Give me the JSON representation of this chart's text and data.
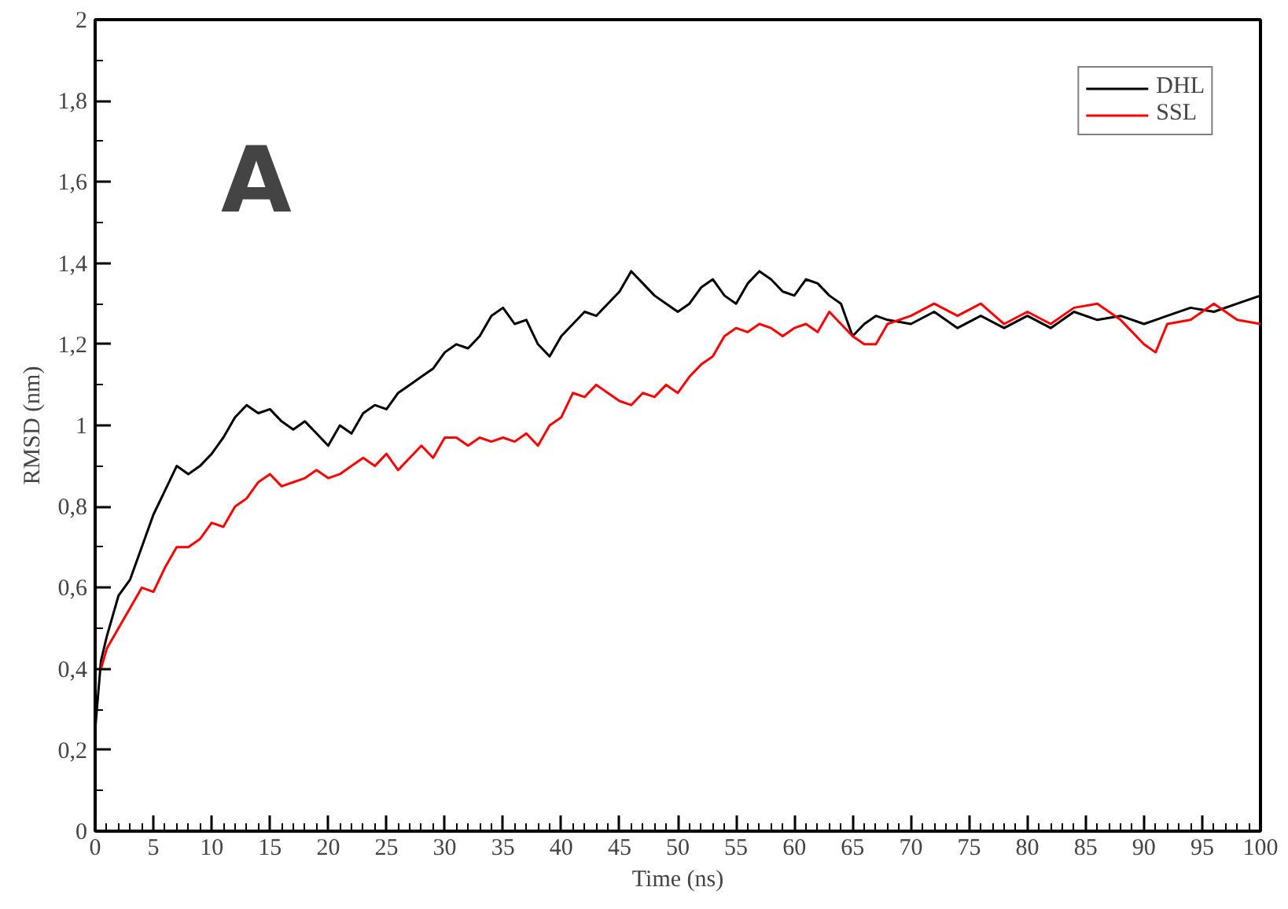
{
  "chart_data": {
    "type": "line",
    "xlabel": "Time (ns)",
    "ylabel": "RMSD (nm)",
    "annotations": [
      "A"
    ],
    "xlim": [
      0,
      100
    ],
    "xticks": [
      0,
      5,
      10,
      15,
      20,
      25,
      30,
      35,
      40,
      45,
      50,
      55,
      60,
      65,
      70,
      75,
      80,
      85,
      90,
      95,
      100
    ],
    "ylim": [
      0,
      2
    ],
    "yticks": [
      0,
      {
        "value": 0.2,
        "label": "0,2"
      },
      {
        "value": 0.4,
        "label": "0,4"
      },
      {
        "value": 0.6,
        "label": "0,6"
      },
      {
        "value": 0.8,
        "label": "0,8"
      },
      1,
      {
        "value": 1.2,
        "label": "1,2"
      },
      {
        "value": 1.4,
        "label": "1,4"
      },
      {
        "value": 1.6,
        "label": "1,6"
      },
      {
        "value": 1.8,
        "label": "1,8"
      },
      2
    ],
    "grid": false,
    "legend": "top right",
    "marker": "none",
    "line_style": "solid",
    "x": [
      0,
      0.5,
      1,
      2,
      3,
      4,
      5,
      6,
      7,
      8,
      9,
      10,
      11,
      12,
      13,
      14,
      15,
      16,
      17,
      18,
      19,
      20,
      21,
      22,
      23,
      24,
      25,
      26,
      27,
      28,
      29,
      30,
      31,
      32,
      33,
      34,
      35,
      36,
      37,
      38,
      39,
      40,
      41,
      42,
      43,
      44,
      45,
      46,
      47,
      48,
      49,
      50,
      51,
      52,
      53,
      54,
      55,
      56,
      57,
      58,
      59,
      60,
      61,
      62,
      63,
      64,
      65,
      66,
      67,
      68,
      70,
      72,
      74,
      76,
      78,
      80,
      82,
      84,
      86,
      88,
      90,
      91,
      92,
      94,
      96,
      98,
      100
    ],
    "series": [
      {
        "name": "DHL",
        "color": "#000000",
        "values": [
          0.25,
          0.42,
          0.48,
          0.58,
          0.62,
          0.7,
          0.78,
          0.84,
          0.9,
          0.88,
          0.9,
          0.93,
          0.97,
          1.02,
          1.05,
          1.03,
          1.04,
          1.01,
          0.99,
          1.01,
          0.98,
          0.95,
          1.0,
          0.98,
          1.03,
          1.05,
          1.04,
          1.08,
          1.1,
          1.12,
          1.14,
          1.18,
          1.2,
          1.19,
          1.22,
          1.27,
          1.29,
          1.25,
          1.26,
          1.2,
          1.17,
          1.22,
          1.25,
          1.28,
          1.27,
          1.3,
          1.33,
          1.38,
          1.35,
          1.32,
          1.3,
          1.28,
          1.3,
          1.34,
          1.36,
          1.32,
          1.3,
          1.35,
          1.38,
          1.36,
          1.33,
          1.32,
          1.36,
          1.35,
          1.32,
          1.3,
          1.22,
          1.25,
          1.27,
          1.26,
          1.25,
          1.28,
          1.24,
          1.27,
          1.24,
          1.27,
          1.24,
          1.28,
          1.26,
          1.27,
          1.25,
          1.26,
          1.27,
          1.29,
          1.28,
          1.3,
          1.32
        ]
      },
      {
        "name": "SSL",
        "color": "#ff0000",
        "values": [
          null,
          0.4,
          0.45,
          0.5,
          0.55,
          0.6,
          0.59,
          0.65,
          0.7,
          0.7,
          0.72,
          0.76,
          0.75,
          0.8,
          0.82,
          0.86,
          0.88,
          0.85,
          0.86,
          0.87,
          0.89,
          0.87,
          0.88,
          0.9,
          0.92,
          0.9,
          0.93,
          0.89,
          0.92,
          0.95,
          0.92,
          0.97,
          0.97,
          0.95,
          0.97,
          0.96,
          0.97,
          0.96,
          0.98,
          0.95,
          1.0,
          1.02,
          1.08,
          1.07,
          1.1,
          1.08,
          1.06,
          1.05,
          1.08,
          1.07,
          1.1,
          1.08,
          1.12,
          1.15,
          1.17,
          1.22,
          1.24,
          1.23,
          1.25,
          1.24,
          1.22,
          1.24,
          1.25,
          1.23,
          1.28,
          1.25,
          1.22,
          1.2,
          1.2,
          1.25,
          1.27,
          1.3,
          1.27,
          1.3,
          1.25,
          1.28,
          1.25,
          1.29,
          1.3,
          1.26,
          1.2,
          1.18,
          1.25,
          1.26,
          1.3,
          1.26,
          1.25
        ]
      }
    ]
  }
}
